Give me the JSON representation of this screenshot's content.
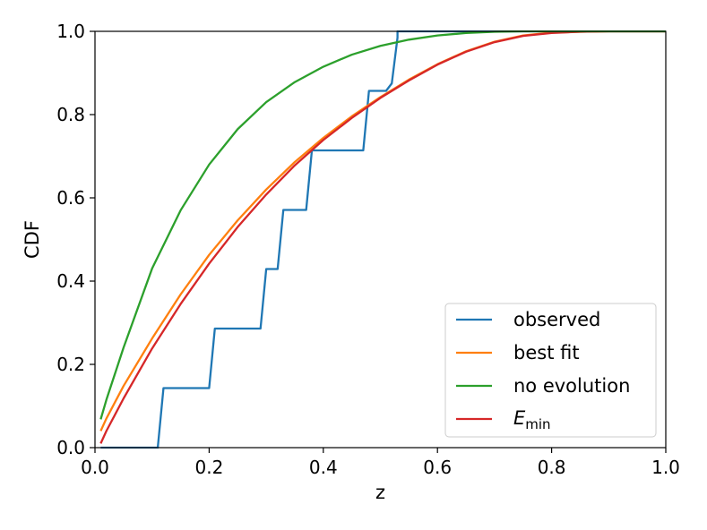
{
  "chart_data": {
    "type": "line",
    "xlabel": "z",
    "ylabel": "CDF",
    "xlim": [
      0.0,
      1.0
    ],
    "ylim": [
      0.0,
      1.0
    ],
    "xticks": [
      "0.0",
      "0.2",
      "0.4",
      "0.6",
      "0.8",
      "1.0"
    ],
    "yticks": [
      "0.0",
      "0.2",
      "0.4",
      "0.6",
      "0.8",
      "1.0"
    ],
    "grid": false,
    "legend_position": "bottom-right",
    "series": [
      {
        "name": "observed",
        "color": "#1f77b4",
        "x": [
          0.01,
          0.11,
          0.12,
          0.2,
          0.21,
          0.29,
          0.3,
          0.32,
          0.33,
          0.37,
          0.38,
          0.47,
          0.48,
          0.51,
          0.52,
          0.53,
          0.53,
          1.0
        ],
        "y": [
          0.0,
          0.0,
          0.143,
          0.143,
          0.286,
          0.286,
          0.429,
          0.429,
          0.571,
          0.571,
          0.714,
          0.714,
          0.857,
          0.857,
          0.875,
          0.985,
          1.0,
          1.0
        ]
      },
      {
        "name": "best fit",
        "color": "#ff7f0e",
        "x": [
          0.01,
          0.02,
          0.05,
          0.1,
          0.15,
          0.2,
          0.25,
          0.3,
          0.35,
          0.4,
          0.45,
          0.5,
          0.55,
          0.6,
          0.65,
          0.7,
          0.75,
          0.8,
          0.85,
          0.9,
          0.95,
          1.0
        ],
        "y": [
          0.04,
          0.07,
          0.148,
          0.262,
          0.368,
          0.463,
          0.546,
          0.62,
          0.686,
          0.744,
          0.796,
          0.842,
          0.884,
          0.921,
          0.952,
          0.975,
          0.99,
          0.997,
          0.999,
          1.0,
          1.0,
          1.0
        ]
      },
      {
        "name": "no evolution",
        "color": "#2ca02c",
        "x": [
          0.01,
          0.02,
          0.05,
          0.1,
          0.15,
          0.2,
          0.25,
          0.3,
          0.35,
          0.4,
          0.45,
          0.5,
          0.55,
          0.6,
          0.65,
          0.7,
          0.75,
          0.8,
          0.9,
          1.0
        ],
        "y": [
          0.068,
          0.115,
          0.24,
          0.43,
          0.57,
          0.68,
          0.765,
          0.83,
          0.878,
          0.915,
          0.944,
          0.965,
          0.98,
          0.99,
          0.996,
          0.999,
          1.0,
          1.0,
          1.0,
          1.0
        ]
      },
      {
        "name": "E_min",
        "label_main": "E",
        "label_sub": "min",
        "color": "#d62728",
        "x": [
          0.01,
          0.02,
          0.05,
          0.1,
          0.15,
          0.2,
          0.25,
          0.3,
          0.35,
          0.4,
          0.45,
          0.5,
          0.55,
          0.6,
          0.65,
          0.7,
          0.75,
          0.8,
          0.85,
          0.9,
          0.95,
          1.0
        ],
        "y": [
          0.01,
          0.04,
          0.118,
          0.238,
          0.345,
          0.442,
          0.53,
          0.608,
          0.678,
          0.739,
          0.792,
          0.84,
          0.882,
          0.92,
          0.951,
          0.974,
          0.989,
          0.996,
          0.999,
          1.0,
          1.0,
          1.0
        ]
      }
    ]
  }
}
